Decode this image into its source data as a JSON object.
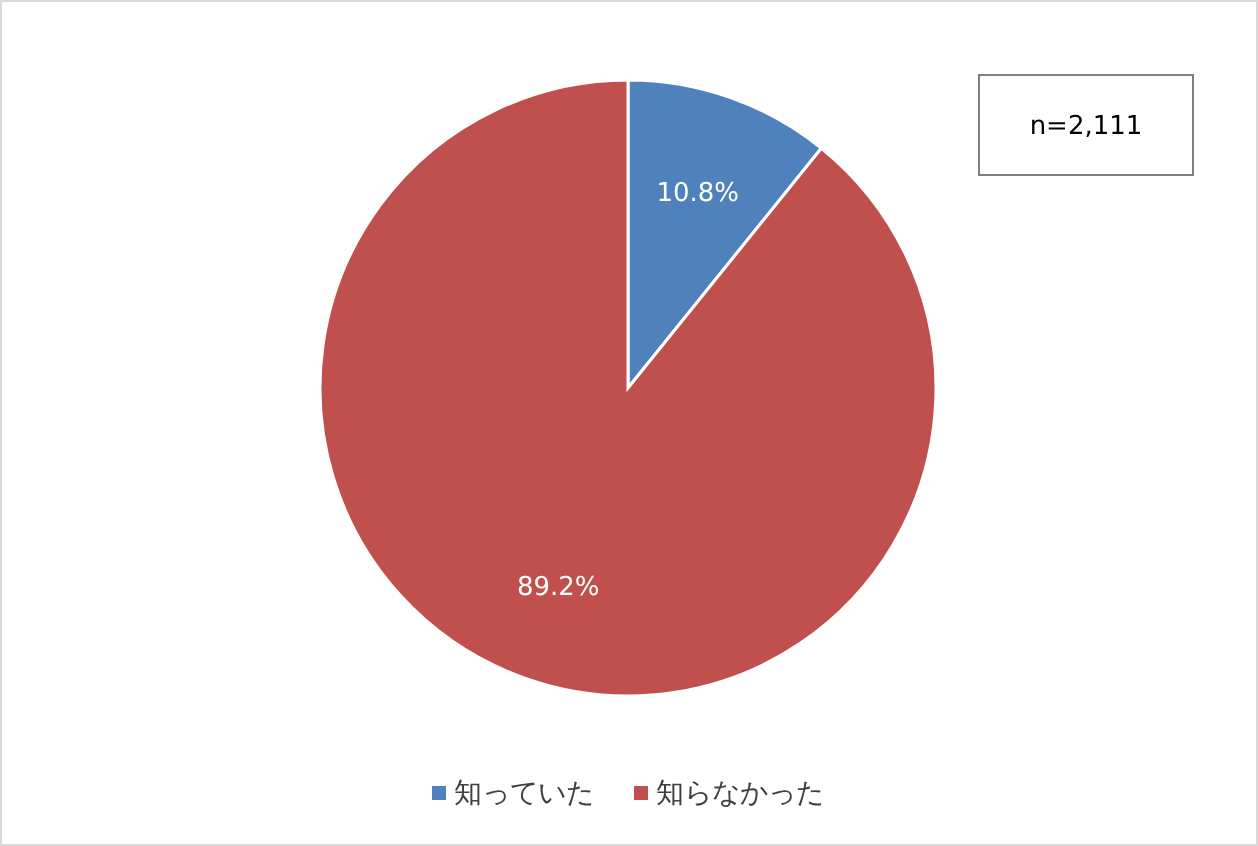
{
  "chart_data": {
    "type": "pie",
    "categories": [
      "知っていた",
      "知らなかった"
    ],
    "values": [
      10.8,
      89.2
    ],
    "colors": [
      "#4f81bd",
      "#c0504d"
    ],
    "value_labels": [
      "10.8%",
      "89.2%"
    ],
    "legend": "bottom",
    "annotations": [
      "n=2,111"
    ]
  }
}
